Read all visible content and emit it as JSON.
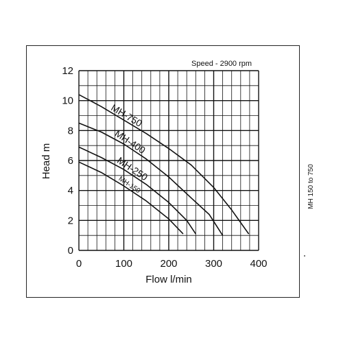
{
  "chart_data": {
    "type": "line",
    "annotation": "Speed - 2900 rpm",
    "xlabel": "Flow l/min",
    "ylabel": "Head m",
    "xlim": [
      0,
      400
    ],
    "ylim": [
      0,
      12
    ],
    "xticks": [
      "0",
      "100",
      "200",
      "300",
      "400"
    ],
    "yticks": [
      "0",
      "2",
      "4",
      "6",
      "8",
      "10",
      "12"
    ],
    "grid": true,
    "series": [
      {
        "name": "MH-750",
        "x": [
          0,
          50,
          100,
          150,
          200,
          250,
          300,
          340,
          378
        ],
        "y": [
          10.4,
          9.6,
          8.7,
          7.8,
          6.8,
          5.7,
          4.2,
          2.7,
          1.1
        ]
      },
      {
        "name": "MH-400",
        "x": [
          0,
          50,
          100,
          150,
          200,
          250,
          290,
          320
        ],
        "y": [
          8.5,
          7.9,
          7.1,
          6.1,
          4.9,
          3.5,
          2.4,
          1.0
        ]
      },
      {
        "name": "MH-250",
        "x": [
          0,
          50,
          100,
          150,
          200,
          240,
          260
        ],
        "y": [
          6.9,
          6.2,
          5.4,
          4.4,
          3.2,
          2.0,
          1.1
        ]
      },
      {
        "name": "MH-150",
        "x": [
          0,
          50,
          100,
          150,
          200,
          232
        ],
        "y": [
          5.9,
          5.2,
          4.3,
          3.3,
          2.1,
          1.1
        ]
      }
    ]
  },
  "side_label": "MH 150 to 750"
}
